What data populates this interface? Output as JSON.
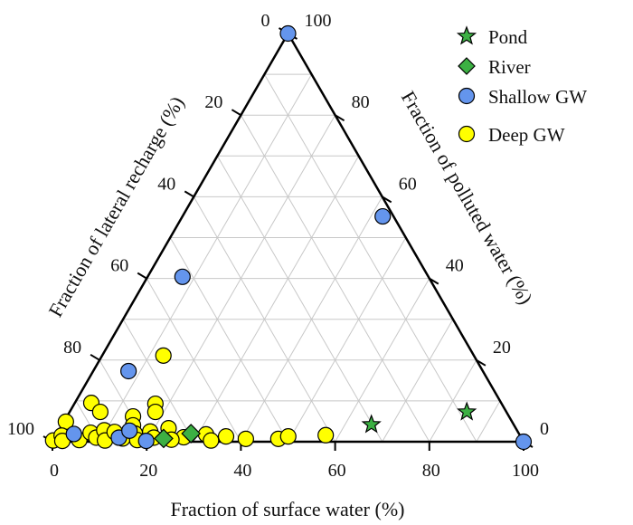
{
  "chart_data": {
    "type": "scatter",
    "subtype": "ternary",
    "axes": {
      "bottom": {
        "label": "Fraction of surface water (%)",
        "ticks": [
          "0",
          "20",
          "40",
          "60",
          "80",
          "100"
        ]
      },
      "left": {
        "label": "Fraction of lateral recharge (%)",
        "ticks": [
          "0",
          "20",
          "40",
          "60",
          "80",
          "100"
        ]
      },
      "right": {
        "label": "Fraction of polluted water (%)",
        "ticks": [
          "0",
          "20",
          "40",
          "60",
          "80",
          "100"
        ]
      }
    },
    "grid": true,
    "legend_position": "top-right",
    "colors": {
      "pond": "#3cb043",
      "river": "#3cb043",
      "shallow": "#6495ed",
      "deep": "#ffff00",
      "grid": "#c8c8c8",
      "edge": "#000000"
    },
    "series": [
      {
        "name": "Pond",
        "marker": "star",
        "points": [
          {
            "surface": 65.6,
            "polluted": 4.2
          },
          {
            "surface": 84.3,
            "polluted": 7.3
          }
        ]
      },
      {
        "name": "River",
        "marker": "diamond",
        "points": [
          {
            "surface": 23.2,
            "polluted": 0.8
          },
          {
            "surface": 28.4,
            "polluted": 2.0
          }
        ]
      },
      {
        "name": "Shallow GW",
        "marker": "circle",
        "points": [
          {
            "surface": 0,
            "polluted": 100
          },
          {
            "surface": 42.5,
            "polluted": 55.2
          },
          {
            "surface": 7.4,
            "polluted": 40.4
          },
          {
            "surface": 7.5,
            "polluted": 17.3
          },
          {
            "surface": 100,
            "polluted": 0
          },
          {
            "surface": 3.6,
            "polluted": 1.9
          },
          {
            "surface": 13.6,
            "polluted": 1.0
          },
          {
            "surface": 15.0,
            "polluted": 2.7
          },
          {
            "surface": 19.8,
            "polluted": 0.2
          }
        ]
      },
      {
        "name": "Deep GW",
        "marker": "circle",
        "points": [
          {
            "surface": 13.0,
            "polluted": 21.1
          },
          {
            "surface": 3.5,
            "polluted": 9.5
          },
          {
            "surface": 6.5,
            "polluted": 7.3
          },
          {
            "surface": 17.2,
            "polluted": 9.3
          },
          {
            "surface": 18.2,
            "polluted": 7.3
          },
          {
            "surface": 14.0,
            "polluted": 6.2
          },
          {
            "surface": 0.4,
            "polluted": 4.9
          },
          {
            "surface": 15.1,
            "polluted": 4.0
          },
          {
            "surface": 23.0,
            "polluted": 3.3
          },
          {
            "surface": 27.3,
            "polluted": 1.1
          },
          {
            "surface": 31.7,
            "polluted": 1.8
          },
          {
            "surface": 33.5,
            "polluted": 0.3
          },
          {
            "surface": 36.2,
            "polluted": 1.3
          },
          {
            "surface": 40.7,
            "polluted": 0.7
          },
          {
            "surface": 47.6,
            "polluted": 0.7
          },
          {
            "surface": 49.4,
            "polluted": 1.3
          },
          {
            "surface": 57.2,
            "polluted": 1.6
          },
          {
            "surface": 0,
            "polluted": 0.3
          },
          {
            "surface": 1.2,
            "polluted": 1.5
          },
          {
            "surface": 2.0,
            "polluted": 0.2
          },
          {
            "surface": 5.5,
            "polluted": 0.4
          },
          {
            "surface": 7.0,
            "polluted": 2.2
          },
          {
            "surface": 8.8,
            "polluted": 1.0
          },
          {
            "surface": 9.6,
            "polluted": 2.8
          },
          {
            "surface": 11.0,
            "polluted": 0.3
          },
          {
            "surface": 12.0,
            "polluted": 2.4
          },
          {
            "surface": 14.5,
            "polluted": 0.8
          },
          {
            "surface": 16.5,
            "polluted": 2.0
          },
          {
            "surface": 17.8,
            "polluted": 0.4
          },
          {
            "surface": 19.5,
            "polluted": 2.5
          },
          {
            "surface": 21.0,
            "polluted": 1.0
          },
          {
            "surface": 25.0,
            "polluted": 0.5
          }
        ]
      }
    ]
  }
}
